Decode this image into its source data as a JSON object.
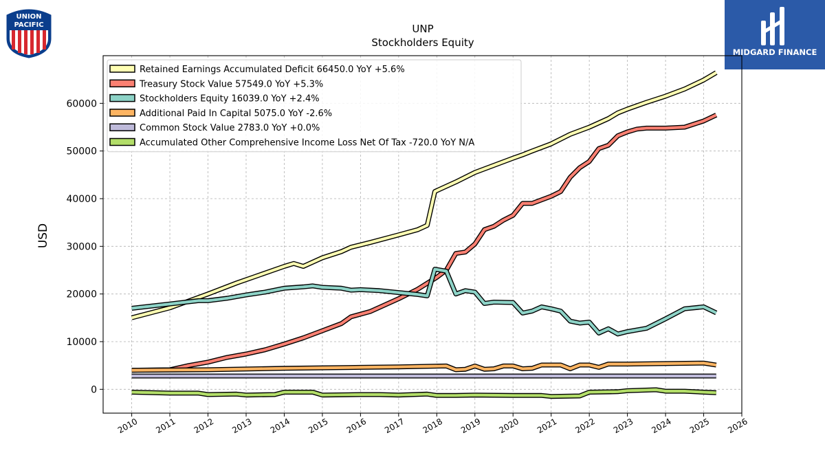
{
  "logos": {
    "union_pacific": {
      "line1": "UNION",
      "line2": "PACIFIC"
    },
    "midgard": {
      "name": "MIDGARD FINANCE",
      "brand_color": "#2b5aa8"
    }
  },
  "chart_data": {
    "type": "line",
    "title": "UNP",
    "subtitle": "Stockholders  Equity",
    "xlabel": "",
    "ylabel": "USD",
    "xlim": [
      2009.25,
      2026.0
    ],
    "ylim": [
      -5000,
      70000
    ],
    "x_ticks": [
      "2010",
      "2011",
      "2012",
      "2013",
      "2014",
      "2015",
      "2016",
      "2017",
      "2018",
      "2019",
      "2020",
      "2021",
      "2022",
      "2023",
      "2024",
      "2025",
      "2026"
    ],
    "y_ticks": [
      0,
      10000,
      20000,
      30000,
      40000,
      50000,
      60000
    ],
    "grid": true,
    "legend_position": "top-left",
    "series": [
      {
        "name": "Retained Earnings Accumulated Deficit",
        "legend": "Retained Earnings Accumulated Deficit  66450.0 YoY +5.6%",
        "color": "#ffffb3",
        "points": [
          [
            2010.0,
            15000
          ],
          [
            2011.0,
            17100
          ],
          [
            2012.0,
            20000
          ],
          [
            2012.75,
            22300
          ],
          [
            2013.25,
            23700
          ],
          [
            2014.0,
            25800
          ],
          [
            2014.25,
            26400
          ],
          [
            2014.5,
            25800
          ],
          [
            2015.0,
            27600
          ],
          [
            2015.5,
            28900
          ],
          [
            2015.75,
            29800
          ],
          [
            2016.25,
            30800
          ],
          [
            2017.0,
            32400
          ],
          [
            2017.5,
            33500
          ],
          [
            2017.75,
            34400
          ],
          [
            2017.95,
            41500
          ],
          [
            2018.5,
            43500
          ],
          [
            2019.0,
            45500
          ],
          [
            2019.5,
            47000
          ],
          [
            2020.0,
            48500
          ],
          [
            2020.25,
            49200
          ],
          [
            2020.5,
            50000
          ],
          [
            2021.0,
            51500
          ],
          [
            2021.5,
            53500
          ],
          [
            2022.0,
            55000
          ],
          [
            2022.5,
            56800
          ],
          [
            2022.75,
            58000
          ],
          [
            2023.0,
            58800
          ],
          [
            2023.5,
            60200
          ],
          [
            2024.0,
            61500
          ],
          [
            2024.5,
            63000
          ],
          [
            2025.0,
            64900
          ],
          [
            2025.33,
            66450
          ]
        ]
      },
      {
        "name": "Treasury Stock Value",
        "legend": "Treasury Stock Value  57549.0 YoY +5.3%",
        "color": "#fb8072",
        "points": [
          [
            2010.0,
            4000
          ],
          [
            2011.0,
            4100
          ],
          [
            2011.5,
            5000
          ],
          [
            2012.0,
            5700
          ],
          [
            2012.5,
            6700
          ],
          [
            2013.0,
            7400
          ],
          [
            2013.5,
            8300
          ],
          [
            2014.0,
            9500
          ],
          [
            2014.5,
            10800
          ],
          [
            2015.0,
            12300
          ],
          [
            2015.5,
            13800
          ],
          [
            2015.75,
            15200
          ],
          [
            2016.25,
            16300
          ],
          [
            2016.5,
            17200
          ],
          [
            2017.0,
            19000
          ],
          [
            2017.5,
            21000
          ],
          [
            2018.0,
            23500
          ],
          [
            2018.25,
            25000
          ],
          [
            2018.5,
            28500
          ],
          [
            2018.75,
            28800
          ],
          [
            2019.0,
            30500
          ],
          [
            2019.25,
            33500
          ],
          [
            2019.5,
            34200
          ],
          [
            2019.75,
            35500
          ],
          [
            2020.0,
            36500
          ],
          [
            2020.25,
            39000
          ],
          [
            2020.5,
            39000
          ],
          [
            2021.0,
            40500
          ],
          [
            2021.25,
            41500
          ],
          [
            2021.5,
            44500
          ],
          [
            2021.75,
            46500
          ],
          [
            2022.0,
            47800
          ],
          [
            2022.25,
            50500
          ],
          [
            2022.5,
            51200
          ],
          [
            2022.75,
            53200
          ],
          [
            2023.0,
            54000
          ],
          [
            2023.25,
            54600
          ],
          [
            2023.5,
            54800
          ],
          [
            2024.0,
            54800
          ],
          [
            2024.5,
            55000
          ],
          [
            2025.0,
            56300
          ],
          [
            2025.33,
            57549
          ]
        ]
      },
      {
        "name": "Stockholders Equity",
        "legend": "Stockholders Equity  16039.0 YoY +2.4%",
        "color": "#8dd3c7",
        "points": [
          [
            2010.0,
            17000
          ],
          [
            2011.0,
            17900
          ],
          [
            2011.75,
            18600
          ],
          [
            2012.0,
            18600
          ],
          [
            2012.5,
            19100
          ],
          [
            2013.0,
            19800
          ],
          [
            2013.5,
            20400
          ],
          [
            2014.0,
            21200
          ],
          [
            2014.5,
            21500
          ],
          [
            2014.75,
            21700
          ],
          [
            2015.0,
            21400
          ],
          [
            2015.5,
            21200
          ],
          [
            2015.75,
            20800
          ],
          [
            2016.0,
            20900
          ],
          [
            2016.5,
            20700
          ],
          [
            2017.0,
            20300
          ],
          [
            2017.5,
            19900
          ],
          [
            2017.75,
            19600
          ],
          [
            2017.95,
            25200
          ],
          [
            2018.25,
            24800
          ],
          [
            2018.5,
            20000
          ],
          [
            2018.75,
            20700
          ],
          [
            2019.0,
            20400
          ],
          [
            2019.25,
            18000
          ],
          [
            2019.5,
            18300
          ],
          [
            2020.0,
            18200
          ],
          [
            2020.25,
            16000
          ],
          [
            2020.5,
            16400
          ],
          [
            2020.75,
            17300
          ],
          [
            2021.0,
            16900
          ],
          [
            2021.25,
            16400
          ],
          [
            2021.5,
            14300
          ],
          [
            2021.75,
            13900
          ],
          [
            2022.0,
            14100
          ],
          [
            2022.25,
            11800
          ],
          [
            2022.5,
            12700
          ],
          [
            2022.75,
            11600
          ],
          [
            2023.0,
            12100
          ],
          [
            2023.5,
            12800
          ],
          [
            2024.0,
            14800
          ],
          [
            2024.5,
            16900
          ],
          [
            2025.0,
            17300
          ],
          [
            2025.33,
            16039
          ]
        ]
      },
      {
        "name": "Additional Paid In Capital",
        "legend": "Additional Paid In Capital  5075.0 YoY -2.6%",
        "color": "#fdb462",
        "points": [
          [
            2010.0,
            4000
          ],
          [
            2012.0,
            4100
          ],
          [
            2014.0,
            4400
          ],
          [
            2016.0,
            4600
          ],
          [
            2017.0,
            4700
          ],
          [
            2018.25,
            4900
          ],
          [
            2018.5,
            4100
          ],
          [
            2018.75,
            4200
          ],
          [
            2019.0,
            4900
          ],
          [
            2019.25,
            4200
          ],
          [
            2019.5,
            4300
          ],
          [
            2019.75,
            4900
          ],
          [
            2020.0,
            4900
          ],
          [
            2020.25,
            4300
          ],
          [
            2020.5,
            4400
          ],
          [
            2020.75,
            5100
          ],
          [
            2021.25,
            5100
          ],
          [
            2021.5,
            4300
          ],
          [
            2021.75,
            5100
          ],
          [
            2022.0,
            5100
          ],
          [
            2022.25,
            4600
          ],
          [
            2022.5,
            5300
          ],
          [
            2023.0,
            5300
          ],
          [
            2024.0,
            5400
          ],
          [
            2025.0,
            5500
          ],
          [
            2025.33,
            5075
          ]
        ]
      },
      {
        "name": "Common Stock Value",
        "legend": "Common Stock Value  2783.0 YoY +0.0%",
        "color": "#bebada",
        "points": [
          [
            2010.0,
            2783
          ],
          [
            2025.33,
            2783
          ]
        ]
      },
      {
        "name": "Accumulated Other Comprehensive Income Loss Net Of Tax",
        "legend": "Accumulated Other Comprehensive Income Loss Net Of Tax  -720.0 YoY N/A",
        "color": "#b3de69",
        "points": [
          [
            2010.0,
            -600
          ],
          [
            2011.0,
            -800
          ],
          [
            2011.75,
            -800
          ],
          [
            2012.0,
            -1100
          ],
          [
            2012.75,
            -1000
          ],
          [
            2013.0,
            -1200
          ],
          [
            2013.75,
            -1100
          ],
          [
            2014.0,
            -600
          ],
          [
            2014.75,
            -600
          ],
          [
            2015.0,
            -1200
          ],
          [
            2016.0,
            -1100
          ],
          [
            2016.5,
            -1100
          ],
          [
            2017.0,
            -1200
          ],
          [
            2017.75,
            -1000
          ],
          [
            2018.0,
            -1300
          ],
          [
            2018.5,
            -1300
          ],
          [
            2019.0,
            -1200
          ],
          [
            2020.0,
            -1300
          ],
          [
            2020.75,
            -1300
          ],
          [
            2021.0,
            -1500
          ],
          [
            2021.75,
            -1400
          ],
          [
            2022.0,
            -600
          ],
          [
            2022.75,
            -500
          ],
          [
            2023.0,
            -300
          ],
          [
            2023.75,
            -100
          ],
          [
            2024.0,
            -400
          ],
          [
            2024.5,
            -400
          ],
          [
            2025.0,
            -600
          ],
          [
            2025.33,
            -720
          ]
        ]
      }
    ]
  }
}
